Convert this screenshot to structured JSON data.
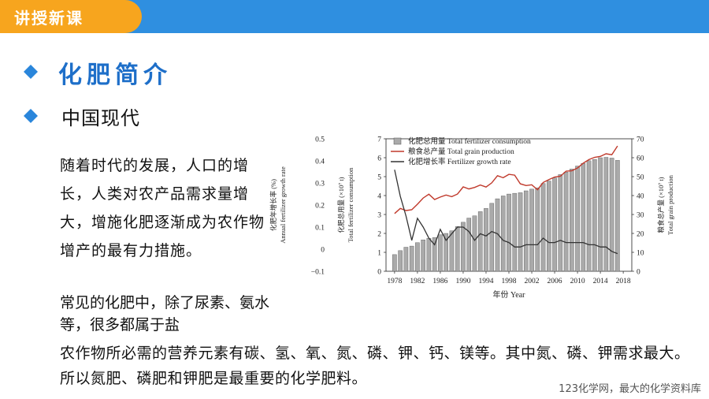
{
  "header": {
    "tab_label": "讲授新课"
  },
  "section": {
    "title": "化肥简介",
    "subtitle": "中国现代"
  },
  "body": {
    "para1": "随着时代的发展，人口的增长，人类对农产品需求量增大，增施化肥逐渐成为农作物增产的最有力措施。",
    "para2": "常见的化肥中，除了尿素、氨水等，很多都属于盐",
    "para3": "农作物所必需的营养元素有碳、氢、氧、氮、磷、钾、钙、镁等。其中氮、磷、钾需求最大。所以氮肥、磷肥和钾肥是最重要的化学肥料。"
  },
  "watermark": "123化学网，最大的化学资料库",
  "colors": {
    "header_blue": "#2f8fe0",
    "tab_orange": "#f7a51e",
    "title_blue": "#1e6fc9",
    "diamond_blue": "#2a86db"
  },
  "icons": [
    "diamond-bullet-icon"
  ],
  "chart_data": {
    "type": "bar+line",
    "x_ticks": [
      1978,
      1982,
      1986,
      1990,
      1994,
      1998,
      2002,
      2006,
      2010,
      2014,
      2018
    ],
    "xlabel": "年份 Year",
    "y_left_outer": {
      "label_cn": "化肥年增长率 (%)",
      "label_en": "Annual fertilizer growth rate",
      "lim": [
        -0.1,
        0.5
      ],
      "ticks": [
        "−0.1",
        "0",
        "0.1",
        "0.2",
        "0.3",
        "0.4",
        "0.5"
      ]
    },
    "y_left_inner": {
      "label_cn": "化肥总用量 (×10⁷ t)",
      "label_en": "Total fertilizer consumption",
      "lim": [
        0,
        7
      ],
      "ticks": [
        "0",
        "1",
        "2",
        "3",
        "4",
        "5",
        "6",
        "7"
      ]
    },
    "y_right": {
      "label_cn": "粮食总产量 (×10⁷ t)",
      "label_en": "Total grain production",
      "lim": [
        0,
        70
      ],
      "ticks": [
        "0",
        "10",
        "20",
        "30",
        "40",
        "50",
        "60",
        "70"
      ]
    },
    "legend": [
      {
        "name": "化肥总用量 Total fertilizer consumption",
        "kind": "bar",
        "color": "#aaaaaa"
      },
      {
        "name": "粮食总产量 Total grain production",
        "kind": "line",
        "color": "#c0392b"
      },
      {
        "name": "化肥增长率 Fertilizer growth rate",
        "kind": "line",
        "color": "#333333"
      }
    ],
    "years": [
      1978,
      1979,
      1980,
      1981,
      1982,
      1983,
      1984,
      1985,
      1986,
      1987,
      1988,
      1989,
      1990,
      1991,
      1992,
      1993,
      1994,
      1995,
      1996,
      1997,
      1998,
      1999,
      2000,
      2001,
      2002,
      2003,
      2004,
      2005,
      2006,
      2007,
      2008,
      2009,
      2010,
      2011,
      2012,
      2013,
      2014,
      2015,
      2016,
      2017
    ],
    "fertilizer": [
      0.88,
      1.09,
      1.27,
      1.33,
      1.51,
      1.66,
      1.74,
      1.78,
      1.93,
      2.0,
      2.14,
      2.36,
      2.59,
      2.81,
      2.93,
      3.15,
      3.32,
      3.59,
      3.83,
      3.98,
      4.08,
      4.12,
      4.15,
      4.25,
      4.34,
      4.41,
      4.64,
      4.77,
      4.93,
      5.11,
      5.24,
      5.4,
      5.56,
      5.7,
      5.84,
      5.91,
      6.0,
      6.02,
      5.98,
      5.86
    ],
    "grain": [
      30.5,
      33.2,
      32.1,
      32.5,
      35.4,
      38.7,
      40.7,
      37.9,
      39.2,
      40.3,
      39.4,
      40.8,
      44.6,
      43.5,
      44.3,
      45.6,
      44.5,
      46.7,
      50.5,
      49.4,
      51.2,
      50.8,
      46.2,
      45.3,
      45.7,
      43.1,
      46.9,
      48.4,
      49.8,
      50.2,
      52.9,
      53.1,
      54.6,
      57.1,
      59.0,
      60.2,
      60.7,
      62.1,
      61.6,
      66.2
    ],
    "growth_rate": [
      0.36,
      0.24,
      0.15,
      0.04,
      0.14,
      0.1,
      0.05,
      0.02,
      0.09,
      0.04,
      0.07,
      0.1,
      0.1,
      0.08,
      0.04,
      0.07,
      0.06,
      0.08,
      0.07,
      0.04,
      0.03,
      0.01,
      0.01,
      0.02,
      0.02,
      0.02,
      0.05,
      0.03,
      0.03,
      0.04,
      0.03,
      0.03,
      0.03,
      0.03,
      0.02,
      0.02,
      0.01,
      0.01,
      -0.01,
      -0.02
    ]
  }
}
